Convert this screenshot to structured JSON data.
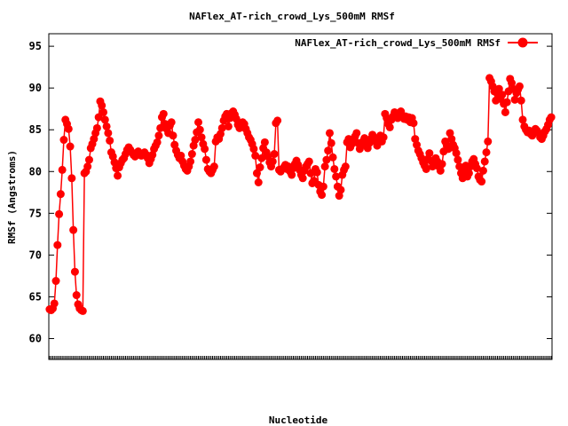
{
  "chart_data": {
    "type": "line",
    "title": "NAFlex_AT-rich_crowd_Lys_500mM RMSf",
    "xlabel": "Nucleotide",
    "ylabel": "RMSf (Angstroms)",
    "ylim": [
      57.5,
      96.5
    ],
    "yticks": [
      60,
      65,
      70,
      75,
      80,
      85,
      90,
      95
    ],
    "grid": false,
    "legend_position": "top-right",
    "series": [
      {
        "name": "NAFlex_AT-rich_crowd_Lys_500mM RMSf",
        "color": "#ff0000",
        "marker": "circle",
        "values": [
          63.5,
          63.4,
          63.6,
          64.2,
          66.9,
          71.2,
          74.9,
          77.3,
          80.2,
          83.8,
          86.2,
          85.7,
          85.1,
          83.0,
          79.2,
          73.0,
          68.0,
          65.2,
          64.1,
          63.6,
          63.4,
          63.3,
          79.8,
          80.0,
          80.6,
          81.4,
          82.8,
          83.3,
          83.9,
          84.6,
          85.2,
          86.5,
          88.4,
          87.9,
          87.1,
          86.2,
          85.4,
          84.6,
          83.7,
          82.3,
          81.8,
          81.1,
          80.4,
          79.5,
          80.5,
          81.0,
          81.4,
          81.6,
          82.1,
          82.6,
          82.9,
          82.6,
          82.3,
          82.0,
          81.8,
          82.1,
          82.4,
          82.2,
          81.9,
          82.1,
          82.3,
          82.0,
          81.6,
          81.0,
          81.5,
          82.0,
          82.7,
          83.1,
          83.5,
          84.3,
          85.2,
          86.5,
          86.9,
          85.7,
          85.1,
          84.6,
          85.5,
          85.9,
          84.3,
          83.2,
          82.5,
          82.0,
          81.6,
          81.9,
          81.2,
          80.7,
          80.3,
          80.1,
          80.6,
          81.2,
          82.1,
          83.1,
          83.8,
          84.7,
          85.9,
          85.0,
          84.1,
          83.3,
          82.7,
          81.4,
          80.3,
          80.0,
          79.8,
          80.2,
          80.6,
          83.6,
          84.1,
          83.9,
          84.5,
          85.2,
          86.1,
          86.6,
          86.9,
          85.4,
          86.4,
          87.0,
          87.2,
          86.8,
          86.3,
          85.6,
          85.2,
          85.5,
          85.9,
          85.7,
          85.1,
          84.6,
          84.1,
          83.8,
          83.3,
          82.7,
          81.9,
          79.8,
          78.7,
          80.5,
          81.6,
          82.8,
          83.5,
          82.3,
          81.8,
          81.1,
          80.6,
          81.2,
          82.1,
          85.8,
          86.1,
          80.2,
          80.0,
          80.3,
          80.5,
          80.8,
          80.3,
          80.6,
          80.0,
          79.6,
          80.4,
          80.9,
          81.3,
          80.8,
          80.2,
          79.6,
          79.2,
          80.1,
          80.6,
          80.9,
          81.2,
          79.8,
          78.6,
          78.9,
          80.3,
          79.9,
          78.4,
          77.6,
          77.2,
          78.2,
          80.6,
          81.4,
          82.5,
          84.6,
          83.4,
          81.7,
          80.3,
          79.4,
          78.2,
          77.1,
          77.8,
          79.6,
          80.2,
          80.6,
          83.5,
          83.9,
          82.9,
          83.3,
          83.8,
          84.2,
          84.6,
          83.4,
          82.7,
          83.1,
          83.6,
          84.0,
          83.2,
          82.8,
          83.4,
          83.9,
          84.4,
          84.1,
          83.6,
          83.1,
          83.7,
          84.3,
          83.6,
          84.1,
          86.9,
          86.4,
          85.7,
          85.3,
          86.2,
          86.6,
          87.1,
          86.8,
          86.4,
          86.9,
          87.2,
          86.7,
          86.3,
          86.6,
          86.2,
          86.5,
          85.9,
          86.4,
          85.8,
          83.9,
          83.2,
          82.5,
          82.1,
          81.6,
          81.1,
          80.7,
          80.3,
          81.5,
          82.2,
          81.3,
          80.6,
          81.1,
          81.6,
          81.2,
          80.6,
          80.1,
          80.9,
          82.4,
          83.6,
          83.1,
          82.7,
          84.6,
          83.9,
          83.2,
          82.8,
          82.2,
          81.4,
          80.6,
          79.8,
          79.2,
          80.1,
          80.7,
          79.4,
          79.8,
          80.6,
          81.2,
          81.5,
          80.9,
          80.4,
          79.4,
          79.0,
          78.8,
          80.1,
          81.2,
          82.3,
          83.6,
          91.2,
          90.8,
          90.2,
          89.6,
          88.5,
          89.3,
          89.9,
          88.7,
          89.2,
          88.1,
          87.1,
          88.3,
          89.6,
          91.1,
          90.6,
          89.9,
          88.6,
          89.4,
          89.8,
          90.2,
          88.5,
          86.2,
          85.4,
          85.0,
          84.7,
          84.9,
          84.5,
          84.3,
          84.7,
          85.1,
          84.9,
          84.6,
          84.1,
          83.9,
          84.3,
          84.8,
          85.1,
          85.6,
          86.2,
          86.5
        ]
      }
    ]
  }
}
